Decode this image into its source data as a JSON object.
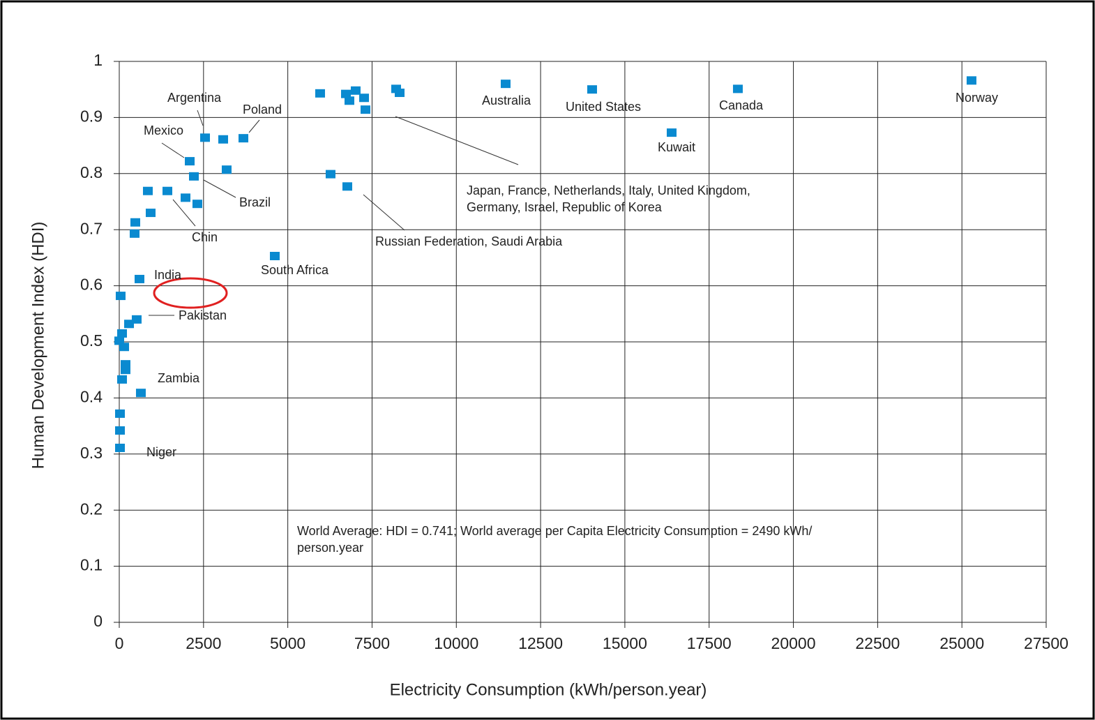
{
  "chart_data": {
    "type": "scatter",
    "x_label": "Electricity Consumption (kWh/person.year)",
    "y_label": "Human Development Index (HDI)",
    "x": [
      25285,
      18353,
      16388,
      14029,
      11463,
      5959,
      6725,
      7014,
      6828,
      7263,
      7304,
      8214,
      8318,
      6269,
      6766,
      4614,
      2545,
      3083,
      3683,
      3186,
      2090,
      2214,
      2317,
      1966,
      1428,
      848,
      931,
      476,
      455,
      600,
      41,
      517,
      290,
      83,
      0,
      145,
      186,
      186,
      83,
      641,
      21,
      21,
      21
    ],
    "values": [
      0.966,
      0.951,
      0.873,
      0.95,
      0.96,
      0.943,
      0.942,
      0.948,
      0.93,
      0.935,
      0.914,
      0.951,
      0.944,
      0.799,
      0.777,
      0.653,
      0.864,
      0.861,
      0.863,
      0.807,
      0.822,
      0.795,
      0.746,
      0.757,
      0.769,
      0.769,
      0.73,
      0.713,
      0.693,
      0.612,
      0.582,
      0.54,
      0.532,
      0.515,
      0.502,
      0.491,
      0.46,
      0.45,
      0.433,
      0.409,
      0.372,
      0.342,
      0.311
    ],
    "color": "#0a8ad0",
    "xlim": [
      0,
      27500
    ],
    "xticks": [
      0,
      2500,
      5000,
      7500,
      10000,
      12500,
      15000,
      17500,
      20000,
      22500,
      25000,
      27500
    ],
    "ylim": [
      0,
      1
    ],
    "yticks": [
      0,
      0.1,
      0.2,
      0.3,
      0.4,
      0.5,
      0.6,
      0.7,
      0.8,
      0.9,
      1
    ],
    "grid": true,
    "annotations": [
      "Argentina",
      "Poland",
      "Mexico",
      "Brazil",
      "Chin",
      "India",
      "Pakistan",
      "Zambia",
      "Niger",
      "South Africa",
      "Australia",
      "United States",
      "Canada",
      "Kuwait",
      "Norway",
      "Japan, France, Netherlands, Italy, United Kingdom,",
      "Germany, Israel, Republic of Korea",
      "Russian Federation, Saudi Arabia",
      "World Average: HDI = 0.741; World average per Capita Electricity Consumption = 2490 kWh/",
      "person.year"
    ]
  }
}
